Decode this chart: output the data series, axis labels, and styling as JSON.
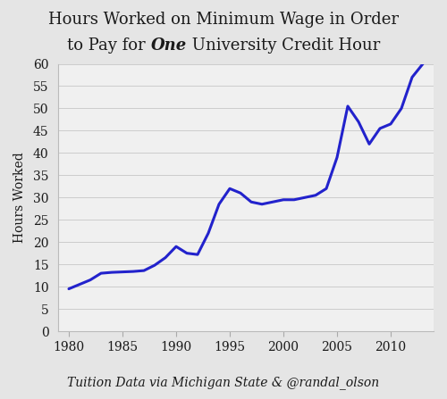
{
  "years": [
    1980,
    1981,
    1982,
    1983,
    1984,
    1985,
    1986,
    1987,
    1988,
    1989,
    1990,
    1991,
    1992,
    1993,
    1994,
    1995,
    1996,
    1997,
    1998,
    1999,
    2000,
    2001,
    2002,
    2003,
    2004,
    2005,
    2006,
    2007,
    2008,
    2009,
    2010,
    2011,
    2012,
    2013
  ],
  "hours": [
    9.5,
    10.5,
    11.5,
    13.0,
    13.2,
    13.3,
    13.4,
    13.6,
    14.8,
    16.5,
    19.0,
    17.5,
    17.2,
    22.0,
    28.5,
    32.0,
    31.0,
    29.0,
    28.5,
    29.0,
    29.5,
    29.5,
    30.0,
    30.5,
    32.0,
    39.0,
    50.5,
    47.0,
    42.0,
    45.5,
    46.5,
    50.0,
    57.0,
    60.0
  ],
  "line_color": "#2222cc",
  "line_width": 2.2,
  "bg_color": "#e5e5e5",
  "plot_bg_color": "#f0f0f0",
  "title_line1": "Hours Worked on Minimum Wage in Order",
  "title_line2_pre": "to Pay for ",
  "title_line2_bold_italic": "One",
  "title_line2_post": " University Credit Hour",
  "ylabel": "Hours Worked",
  "source_text": "Tuition Data via Michigan State & @randal_olson",
  "xlim": [
    1979,
    2014
  ],
  "ylim": [
    0,
    60
  ],
  "yticks": [
    0,
    5,
    10,
    15,
    20,
    25,
    30,
    35,
    40,
    45,
    50,
    55,
    60
  ],
  "xticks": [
    1980,
    1985,
    1990,
    1995,
    2000,
    2005,
    2010
  ],
  "title_fontsize": 13,
  "axis_label_fontsize": 10,
  "source_fontsize": 10,
  "tick_fontsize": 10
}
